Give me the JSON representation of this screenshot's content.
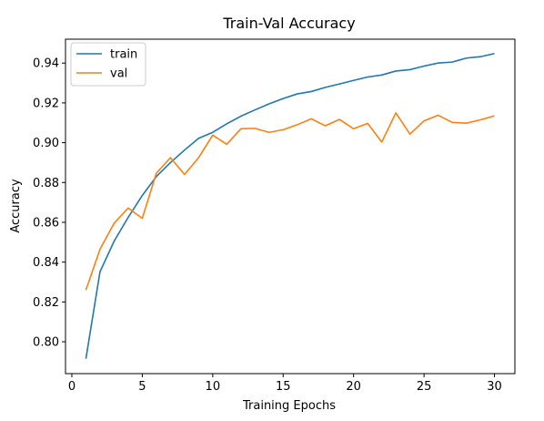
{
  "chart_data": {
    "type": "line",
    "title": "Train-Val Accuracy",
    "xlabel": "Training Epochs",
    "ylabel": "Accuracy",
    "xlim": [
      -0.45,
      31.45
    ],
    "ylim": [
      0.784,
      0.952
    ],
    "xticks": [
      0,
      5,
      10,
      15,
      20,
      25,
      30
    ],
    "yticks": [
      0.8,
      0.82,
      0.84,
      0.86,
      0.88,
      0.9,
      0.92,
      0.94
    ],
    "grid": false,
    "legend_position": "top-left",
    "x": [
      1,
      2,
      3,
      4,
      5,
      6,
      7,
      8,
      9,
      10,
      11,
      12,
      13,
      14,
      15,
      16,
      17,
      18,
      19,
      20,
      21,
      22,
      23,
      24,
      25,
      26,
      27,
      28,
      29,
      30
    ],
    "series": [
      {
        "name": "train",
        "color": "#1f77b4",
        "values": [
          0.7915,
          0.8352,
          0.8505,
          0.8625,
          0.8735,
          0.883,
          0.89,
          0.8963,
          0.9022,
          0.9052,
          0.9095,
          0.9133,
          0.9165,
          0.9195,
          0.9222,
          0.9245,
          0.9257,
          0.9278,
          0.9295,
          0.9313,
          0.933,
          0.934,
          0.936,
          0.9367,
          0.9385,
          0.94,
          0.9405,
          0.9425,
          0.9432,
          0.9448
        ]
      },
      {
        "name": "val",
        "color": "#ff7f0e",
        "values": [
          0.826,
          0.8465,
          0.8595,
          0.8672,
          0.862,
          0.8847,
          0.8925,
          0.884,
          0.8925,
          0.9038,
          0.8992,
          0.907,
          0.9072,
          0.9052,
          0.9065,
          0.909,
          0.912,
          0.9085,
          0.9117,
          0.907,
          0.9097,
          0.9003,
          0.915,
          0.9043,
          0.911,
          0.9138,
          0.9102,
          0.9098,
          0.9115,
          0.9135
        ]
      }
    ]
  }
}
